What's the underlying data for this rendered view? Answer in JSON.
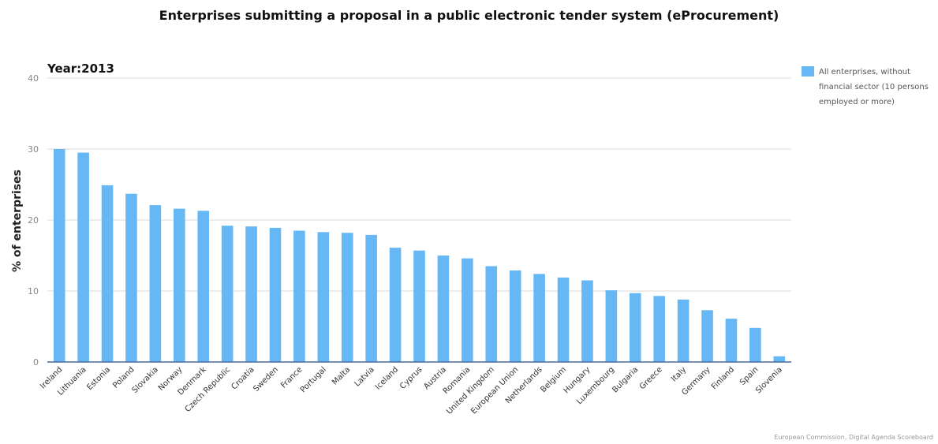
{
  "title": "Enterprises submitting a proposal in a public electronic tender system (eProcurement)",
  "year_label": "Year:2013",
  "footer": "European Commission, Digital Agenda Scoreboard",
  "colors": {
    "bar": "#66b8f5",
    "grid": "#d9d9d9",
    "axis": "#4a6a9a"
  },
  "chart_data": {
    "type": "bar",
    "title": "Enterprises submitting a proposal in a public electronic tender system (eProcurement)",
    "xlabel": "",
    "ylabel": "% of enterprises",
    "ylim": [
      0,
      40
    ],
    "yticks": [
      0,
      10,
      20,
      30,
      40
    ],
    "grid": true,
    "legend_position": "right",
    "categories": [
      "Ireland",
      "Lithuania",
      "Estonia",
      "Poland",
      "Slovakia",
      "Norway",
      "Denmark",
      "Czech Republic",
      "Croatia",
      "Sweden",
      "France",
      "Portugal",
      "Malta",
      "Latvia",
      "Iceland",
      "Cyprus",
      "Austria",
      "Romania",
      "United Kingdom",
      "European Union",
      "Netherlands",
      "Belgium",
      "Hungary",
      "Luxembourg",
      "Bulgaria",
      "Greece",
      "Italy",
      "Germany",
      "Finland",
      "Spain",
      "Slovenia"
    ],
    "series": [
      {
        "name": "All enterprises, without financial sector (10 persons employed or more)",
        "values": [
          30.0,
          29.5,
          24.9,
          23.7,
          22.1,
          21.6,
          21.3,
          19.2,
          19.1,
          18.9,
          18.5,
          18.3,
          18.2,
          17.9,
          16.1,
          15.7,
          15.0,
          14.6,
          13.5,
          12.9,
          12.4,
          11.9,
          11.5,
          10.1,
          9.7,
          9.3,
          8.8,
          7.3,
          6.1,
          4.8,
          0.8
        ]
      }
    ]
  }
}
